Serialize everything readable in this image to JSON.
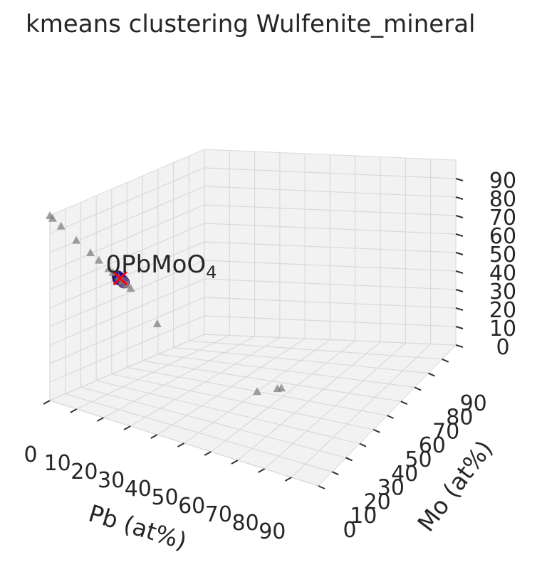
{
  "chart_data": {
    "type": "scatter",
    "projection": "3d",
    "title": "kmeans clustering Wulfenite_mineral",
    "xlabel": "Pb (at%)",
    "ylabel": "Mo (at%)",
    "zlabel": "",
    "xlim": [
      0,
      100
    ],
    "ylim": [
      0,
      100
    ],
    "zlim": [
      0,
      100
    ],
    "ticks": [
      0,
      10,
      20,
      30,
      40,
      50,
      60,
      70,
      80,
      90
    ],
    "grid": true,
    "annotation": {
      "text_main": "0PbMoO",
      "text_sub": "4",
      "x": 16.7,
      "y": 16.7,
      "z": 66.7
    },
    "centroid": {
      "marker": "x",
      "color": "#ff0000",
      "x": 16.7,
      "y": 16.7,
      "z": 66.7
    },
    "series": [
      {
        "marker": "circle",
        "color": "#0000cc",
        "points": [
          {
            "x": 16.0,
            "y": 16.5,
            "z": 67.5
          },
          {
            "x": 17.0,
            "y": 17.0,
            "z": 66.0
          },
          {
            "x": 16.5,
            "y": 16.0,
            "z": 66.5
          },
          {
            "x": 17.5,
            "y": 16.8,
            "z": 65.7
          },
          {
            "x": 16.2,
            "y": 17.5,
            "z": 66.3
          }
        ]
      },
      {
        "marker": "circle",
        "color": "#7b4f8f",
        "points": [
          {
            "x": 18.5,
            "y": 16.0,
            "z": 65.5
          }
        ]
      },
      {
        "marker": "triangle",
        "color": "#808080",
        "points": [
          {
            "x": 0,
            "y": 0,
            "z": 100
          },
          {
            "x": 1,
            "y": 0,
            "z": 99
          },
          {
            "x": 3,
            "y": 2,
            "z": 95
          },
          {
            "x": 7,
            "y": 5,
            "z": 88
          },
          {
            "x": 10,
            "y": 9,
            "z": 81
          },
          {
            "x": 12,
            "y": 11,
            "z": 77
          },
          {
            "x": 14,
            "y": 14,
            "z": 72
          },
          {
            "x": 15,
            "y": 15,
            "z": 70
          },
          {
            "x": 16,
            "y": 17,
            "z": 67
          },
          {
            "x": 18,
            "y": 16,
            "z": 66
          },
          {
            "x": 19,
            "y": 17,
            "z": 64
          },
          {
            "x": 20,
            "y": 18,
            "z": 62
          },
          {
            "x": 40,
            "y": 0,
            "z": 60
          },
          {
            "x": 50,
            "y": 50,
            "z": 0
          },
          {
            "x": 55,
            "y": 55,
            "z": 0
          },
          {
            "x": 56,
            "y": 56,
            "z": 0
          }
        ]
      }
    ]
  }
}
